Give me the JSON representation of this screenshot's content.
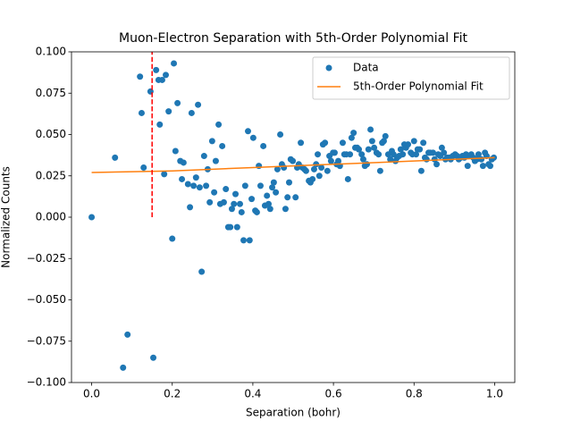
{
  "chart_data": {
    "type": "scatter",
    "title": "Muon-Electron Separation with 5th-Order Polynomial Fit",
    "x_label": "Separation (bohr)",
    "y_label": "Normalized Counts",
    "xlim": [
      -0.05,
      1.05
    ],
    "ylim": [
      -0.1,
      0.1
    ],
    "xticks": [
      {
        "value": 0,
        "label": "0.0"
      },
      0.2,
      0.4,
      0.6,
      0.8,
      {
        "value": 1,
        "label": "1.0"
      }
    ],
    "yticks": [
      {
        "value": -0.1,
        "label": "−0.100"
      },
      {
        "value": -0.075,
        "label": "−0.075"
      },
      {
        "value": -0.05,
        "label": "−0.050"
      },
      {
        "value": -0.025,
        "label": "−0.025"
      },
      {
        "value": 0,
        "label": "0.000"
      },
      {
        "value": 0.025,
        "label": "0.025"
      },
      {
        "value": 0.05,
        "label": "0.050"
      },
      {
        "value": 0.075,
        "label": "0.075"
      },
      {
        "value": 0.1,
        "label": "0.100"
      }
    ],
    "legend": "upper right",
    "series": [
      {
        "name": "Data",
        "type": "scatter",
        "color": "#1f77b4",
        "x": [
          0.0,
          0.058,
          0.078,
          0.089,
          0.12,
          0.124,
          0.129,
          0.146,
          0.153,
          0.16,
          0.166,
          0.169,
          0.175,
          0.18,
          0.184,
          0.191,
          0.2,
          0.204,
          0.208,
          0.213,
          0.22,
          0.224,
          0.228,
          0.239,
          0.244,
          0.248,
          0.253,
          0.259,
          0.264,
          0.268,
          0.273,
          0.279,
          0.284,
          0.288,
          0.293,
          0.299,
          0.304,
          0.308,
          0.315,
          0.319,
          0.324,
          0.328,
          0.333,
          0.339,
          0.344,
          0.348,
          0.353,
          0.357,
          0.361,
          0.368,
          0.372,
          0.377,
          0.381,
          0.388,
          0.392,
          0.397,
          0.401,
          0.406,
          0.41,
          0.415,
          0.419,
          0.426,
          0.43,
          0.435,
          0.439,
          0.443,
          0.448,
          0.452,
          0.457,
          0.461,
          0.468,
          0.472,
          0.477,
          0.481,
          0.486,
          0.49,
          0.494,
          0.499,
          0.506,
          0.51,
          0.514,
          0.519,
          0.523,
          0.528,
          0.532,
          0.539,
          0.543,
          0.548,
          0.552,
          0.557,
          0.561,
          0.565,
          0.57,
          0.574,
          0.579,
          0.585,
          0.59,
          0.594,
          0.599,
          0.603,
          0.608,
          0.612,
          0.616,
          0.623,
          0.627,
          0.632,
          0.636,
          0.641,
          0.645,
          0.65,
          0.654,
          0.659,
          0.663,
          0.67,
          0.674,
          0.678,
          0.683,
          0.687,
          0.692,
          0.696,
          0.701,
          0.707,
          0.712,
          0.716,
          0.721,
          0.725,
          0.729,
          0.736,
          0.741,
          0.745,
          0.749,
          0.754,
          0.758,
          0.763,
          0.767,
          0.772,
          0.776,
          0.78,
          0.785,
          0.792,
          0.796,
          0.8,
          0.805,
          0.809,
          0.814,
          0.818,
          0.823,
          0.827,
          0.831,
          0.836,
          0.84,
          0.847,
          0.851,
          0.856,
          0.86,
          0.865,
          0.869,
          0.874,
          0.878,
          0.882,
          0.887,
          0.891,
          0.896,
          0.902,
          0.907,
          0.911,
          0.916,
          0.92,
          0.925,
          0.929,
          0.933,
          0.938,
          0.942,
          0.947,
          0.951,
          0.956,
          0.96,
          0.967,
          0.971,
          0.976,
          0.98,
          0.985,
          0.989,
          0.993,
          0.998
        ],
        "values": [
          0.0,
          0.036,
          -0.091,
          -0.071,
          0.085,
          0.063,
          0.03,
          0.076,
          -0.085,
          0.089,
          0.083,
          0.056,
          0.083,
          0.026,
          0.086,
          0.064,
          -0.013,
          0.093,
          0.04,
          0.069,
          0.034,
          0.023,
          0.033,
          0.02,
          0.006,
          0.063,
          0.019,
          0.024,
          0.068,
          0.018,
          -0.033,
          0.037,
          0.019,
          0.029,
          0.009,
          0.046,
          0.015,
          0.034,
          0.056,
          0.008,
          0.043,
          0.009,
          0.017,
          -0.006,
          -0.006,
          0.005,
          0.008,
          0.014,
          -0.006,
          0.008,
          0.003,
          -0.014,
          0.019,
          0.052,
          -0.014,
          0.011,
          0.048,
          0.004,
          0.003,
          0.031,
          0.019,
          0.043,
          0.007,
          0.013,
          0.008,
          0.005,
          0.018,
          0.021,
          0.015,
          0.029,
          0.05,
          0.032,
          0.03,
          0.005,
          0.012,
          0.021,
          0.035,
          0.034,
          0.012,
          0.03,
          0.032,
          0.045,
          0.03,
          0.029,
          0.028,
          0.022,
          0.021,
          0.023,
          0.029,
          0.032,
          0.038,
          0.025,
          0.03,
          0.044,
          0.045,
          0.028,
          0.037,
          0.034,
          0.039,
          0.039,
          0.032,
          0.034,
          0.031,
          0.045,
          0.038,
          0.038,
          0.023,
          0.038,
          0.048,
          0.051,
          0.042,
          0.042,
          0.041,
          0.038,
          0.035,
          0.031,
          0.032,
          0.041,
          0.053,
          0.046,
          0.042,
          0.039,
          0.038,
          0.028,
          0.045,
          0.046,
          0.049,
          0.038,
          0.035,
          0.04,
          0.038,
          0.034,
          0.036,
          0.037,
          0.041,
          0.038,
          0.044,
          0.042,
          0.044,
          0.039,
          0.038,
          0.046,
          0.038,
          0.041,
          0.041,
          0.028,
          0.045,
          0.036,
          0.035,
          0.039,
          0.039,
          0.039,
          0.035,
          0.032,
          0.038,
          0.037,
          0.042,
          0.039,
          0.035,
          0.036,
          0.036,
          0.035,
          0.037,
          0.038,
          0.037,
          0.035,
          0.036,
          0.037,
          0.036,
          0.038,
          0.031,
          0.037,
          0.038,
          0.036,
          0.034,
          0.035,
          0.038,
          0.035,
          0.031,
          0.039,
          0.037,
          0.032,
          0.031,
          0.035,
          0.036
        ]
      },
      {
        "name": "5th-Order Polynomial Fit",
        "type": "line",
        "color": "#ff7f0e",
        "x": [
          0,
          0.1,
          0.2,
          0.3,
          0.4,
          0.5,
          0.6,
          0.7,
          0.8,
          0.9,
          1.0
        ],
        "values": [
          0.027,
          0.0275,
          0.028,
          0.029,
          0.03,
          0.031,
          0.032,
          0.033,
          0.034,
          0.035,
          0.036
        ]
      }
    ],
    "vline": {
      "x": 0.15,
      "ymin": 0,
      "ymax": 0.1,
      "color": "#ff0000"
    }
  }
}
